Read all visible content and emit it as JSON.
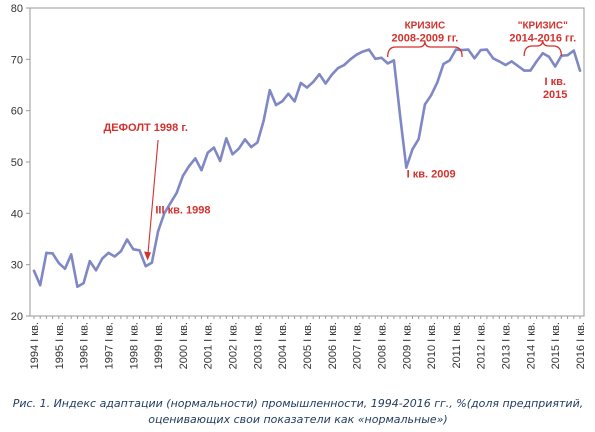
{
  "chart_data": {
    "type": "line",
    "ylim": [
      20,
      80
    ],
    "y_ticks": [
      20,
      30,
      40,
      50,
      60,
      70,
      80
    ],
    "grid": false,
    "line_color": "#7f88c4",
    "annotation_color": "#d3312e",
    "x_labels": [
      "1994 I кв.",
      "1995 I кв.",
      "1996 I кв.",
      "1997 I кв.",
      "1998 I кв.",
      "1999 I кв.",
      "2000 I кв.",
      "2001 I кв.",
      "2002 I кв.",
      "2003 I кв.",
      "2004 I кв.",
      "2005 I кв.",
      "2006 I кв.",
      "2007 I кв.",
      "2008 I кв.",
      "2009 I кв.",
      "2010 I кв.",
      "2011 I кв.",
      "2012 I кв.",
      "2013 I кв.",
      "2014 I кв.",
      "2015 I кв.",
      "2016 I кв."
    ],
    "values": [
      28.8,
      26.0,
      32.3,
      32.2,
      30.3,
      29.2,
      32.0,
      25.7,
      26.4,
      30.7,
      28.9,
      31.2,
      32.3,
      31.6,
      32.6,
      34.9,
      33.0,
      32.8,
      29.7,
      30.4,
      36.5,
      40.0,
      42.0,
      44.0,
      47.3,
      49.2,
      50.7,
      48.4,
      51.8,
      52.8,
      50.2,
      54.6,
      51.5,
      52.6,
      54.4,
      52.9,
      53.8,
      58.0,
      64.0,
      61.1,
      61.8,
      63.3,
      61.8,
      65.4,
      64.5,
      65.6,
      67.1,
      65.3,
      67.0,
      68.3,
      68.9,
      70.0,
      70.9,
      71.5,
      71.9,
      70.1,
      70.3,
      69.2,
      69.8,
      59.0,
      48.9,
      52.5,
      54.5,
      61.2,
      63.0,
      65.5,
      69.1,
      69.8,
      71.9,
      71.8,
      71.9,
      70.2,
      71.8,
      71.9,
      70.2,
      69.6,
      68.9,
      69.6,
      68.7,
      67.8,
      67.8,
      69.6,
      71.2,
      70.5,
      68.6,
      70.7,
      70.8,
      71.7,
      67.8
    ],
    "annotations": [
      {
        "lines": [
          "КРИЗИС",
          "2008-2009 гг."
        ],
        "x_index": 63,
        "y": 76
      },
      {
        "lines": [
          "\"КРИЗИС\"",
          "2014-2016 гг."
        ],
        "x_index": 82,
        "y": 76
      },
      {
        "lines": [
          "ДЕФОЛТ 1998 г."
        ],
        "x_index": 18,
        "y": 56
      },
      {
        "lines": [
          "III кв. 1998"
        ],
        "x_index": 24,
        "y": 40
      },
      {
        "lines": [
          "I кв. 2009"
        ],
        "x_index": 64,
        "y": 47
      },
      {
        "lines": [
          "I кв.",
          "2015"
        ],
        "x_index": 84,
        "y": 65
      }
    ]
  },
  "caption": {
    "line1": "Рис. 1. Индекс адаптации (нормальности) промышленности, 1994-2016 гг., %(доля предприятий,",
    "line2": "оценивающих свои показатели как «нормальные»)"
  }
}
